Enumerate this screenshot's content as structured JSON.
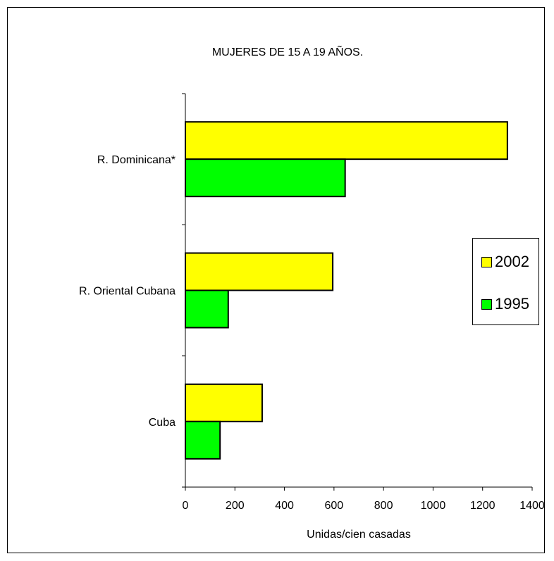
{
  "chart_data": {
    "type": "bar",
    "orientation": "horizontal",
    "title": "MUJERES DE 15 A 19 AÑOS.",
    "xlabel": "Unidas/cien casadas",
    "ylabel": "",
    "categories": [
      "R. Dominicana*",
      "R. Oriental Cubana",
      "Cuba"
    ],
    "series": [
      {
        "name": "2002",
        "color": "#ffff00",
        "values": [
          1300,
          595,
          310
        ]
      },
      {
        "name": "1995",
        "color": "#00ff00",
        "values": [
          645,
          173,
          140
        ]
      }
    ],
    "xlim": [
      0,
      1400
    ],
    "xticks": [
      "0",
      "200",
      "400",
      "600",
      "800",
      "1000",
      "1200",
      "1400"
    ],
    "grid": false,
    "legend_position": "right"
  }
}
